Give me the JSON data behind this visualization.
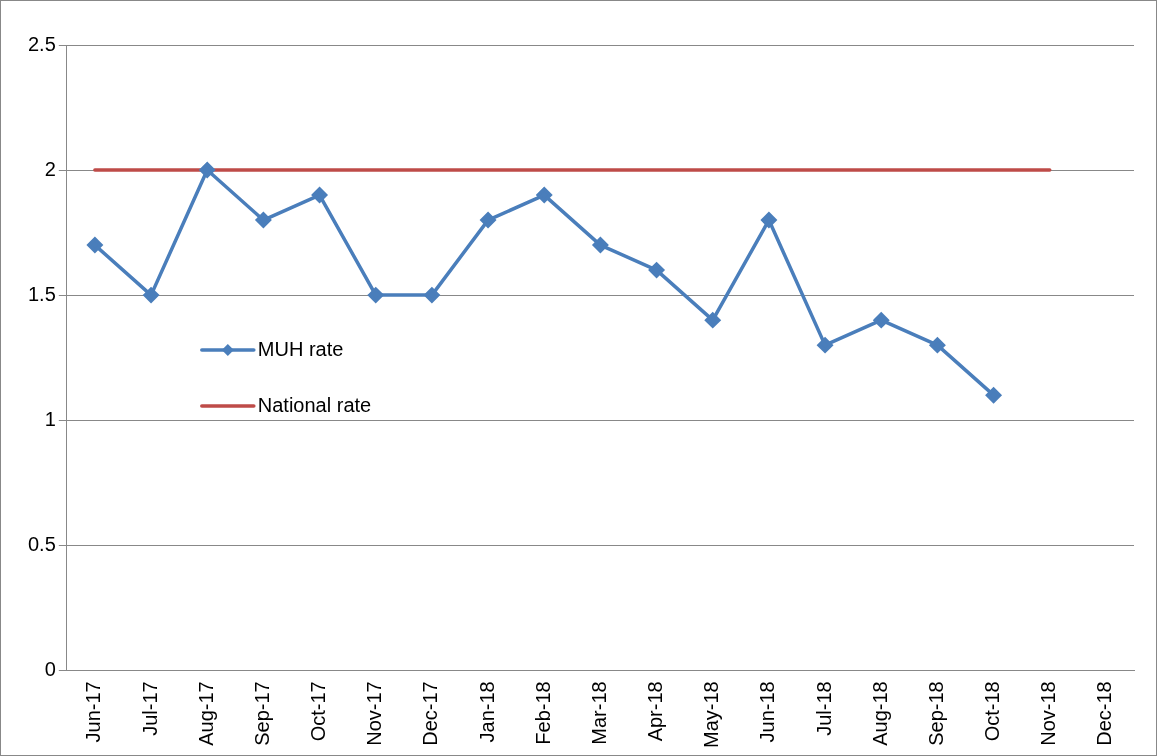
{
  "chart_data": {
    "type": "line",
    "categories": [
      "Jun-17",
      "Jul-17",
      "Aug-17",
      "Sep-17",
      "Oct-17",
      "Nov-17",
      "Dec-17",
      "Jan-18",
      "Feb-18",
      "Mar-18",
      "Apr-18",
      "May-18",
      "Jun-18",
      "Jul-18",
      "Aug-18",
      "Sep-18",
      "Oct-18",
      "Nov-18",
      "Dec-18"
    ],
    "series": [
      {
        "name": "MUH rate",
        "color": "#4a7ebb",
        "marker": "diamond",
        "values": [
          1.7,
          1.5,
          2.0,
          1.8,
          1.9,
          1.5,
          1.5,
          1.8,
          1.9,
          1.7,
          1.6,
          1.4,
          1.8,
          1.3,
          1.4,
          1.3,
          1.1,
          null,
          null
        ]
      },
      {
        "name": "National rate",
        "color": "#be4b48",
        "marker": "none",
        "values": [
          2,
          2,
          2,
          2,
          2,
          2,
          2,
          2,
          2,
          2,
          2,
          2,
          2,
          2,
          2,
          2,
          2,
          2,
          null
        ]
      }
    ],
    "ylim": [
      0,
      2.5
    ],
    "yticks": [
      0,
      0.5,
      1,
      1.5,
      2,
      2.5
    ],
    "grid": "y",
    "legend": "left",
    "line_style": "solid"
  }
}
